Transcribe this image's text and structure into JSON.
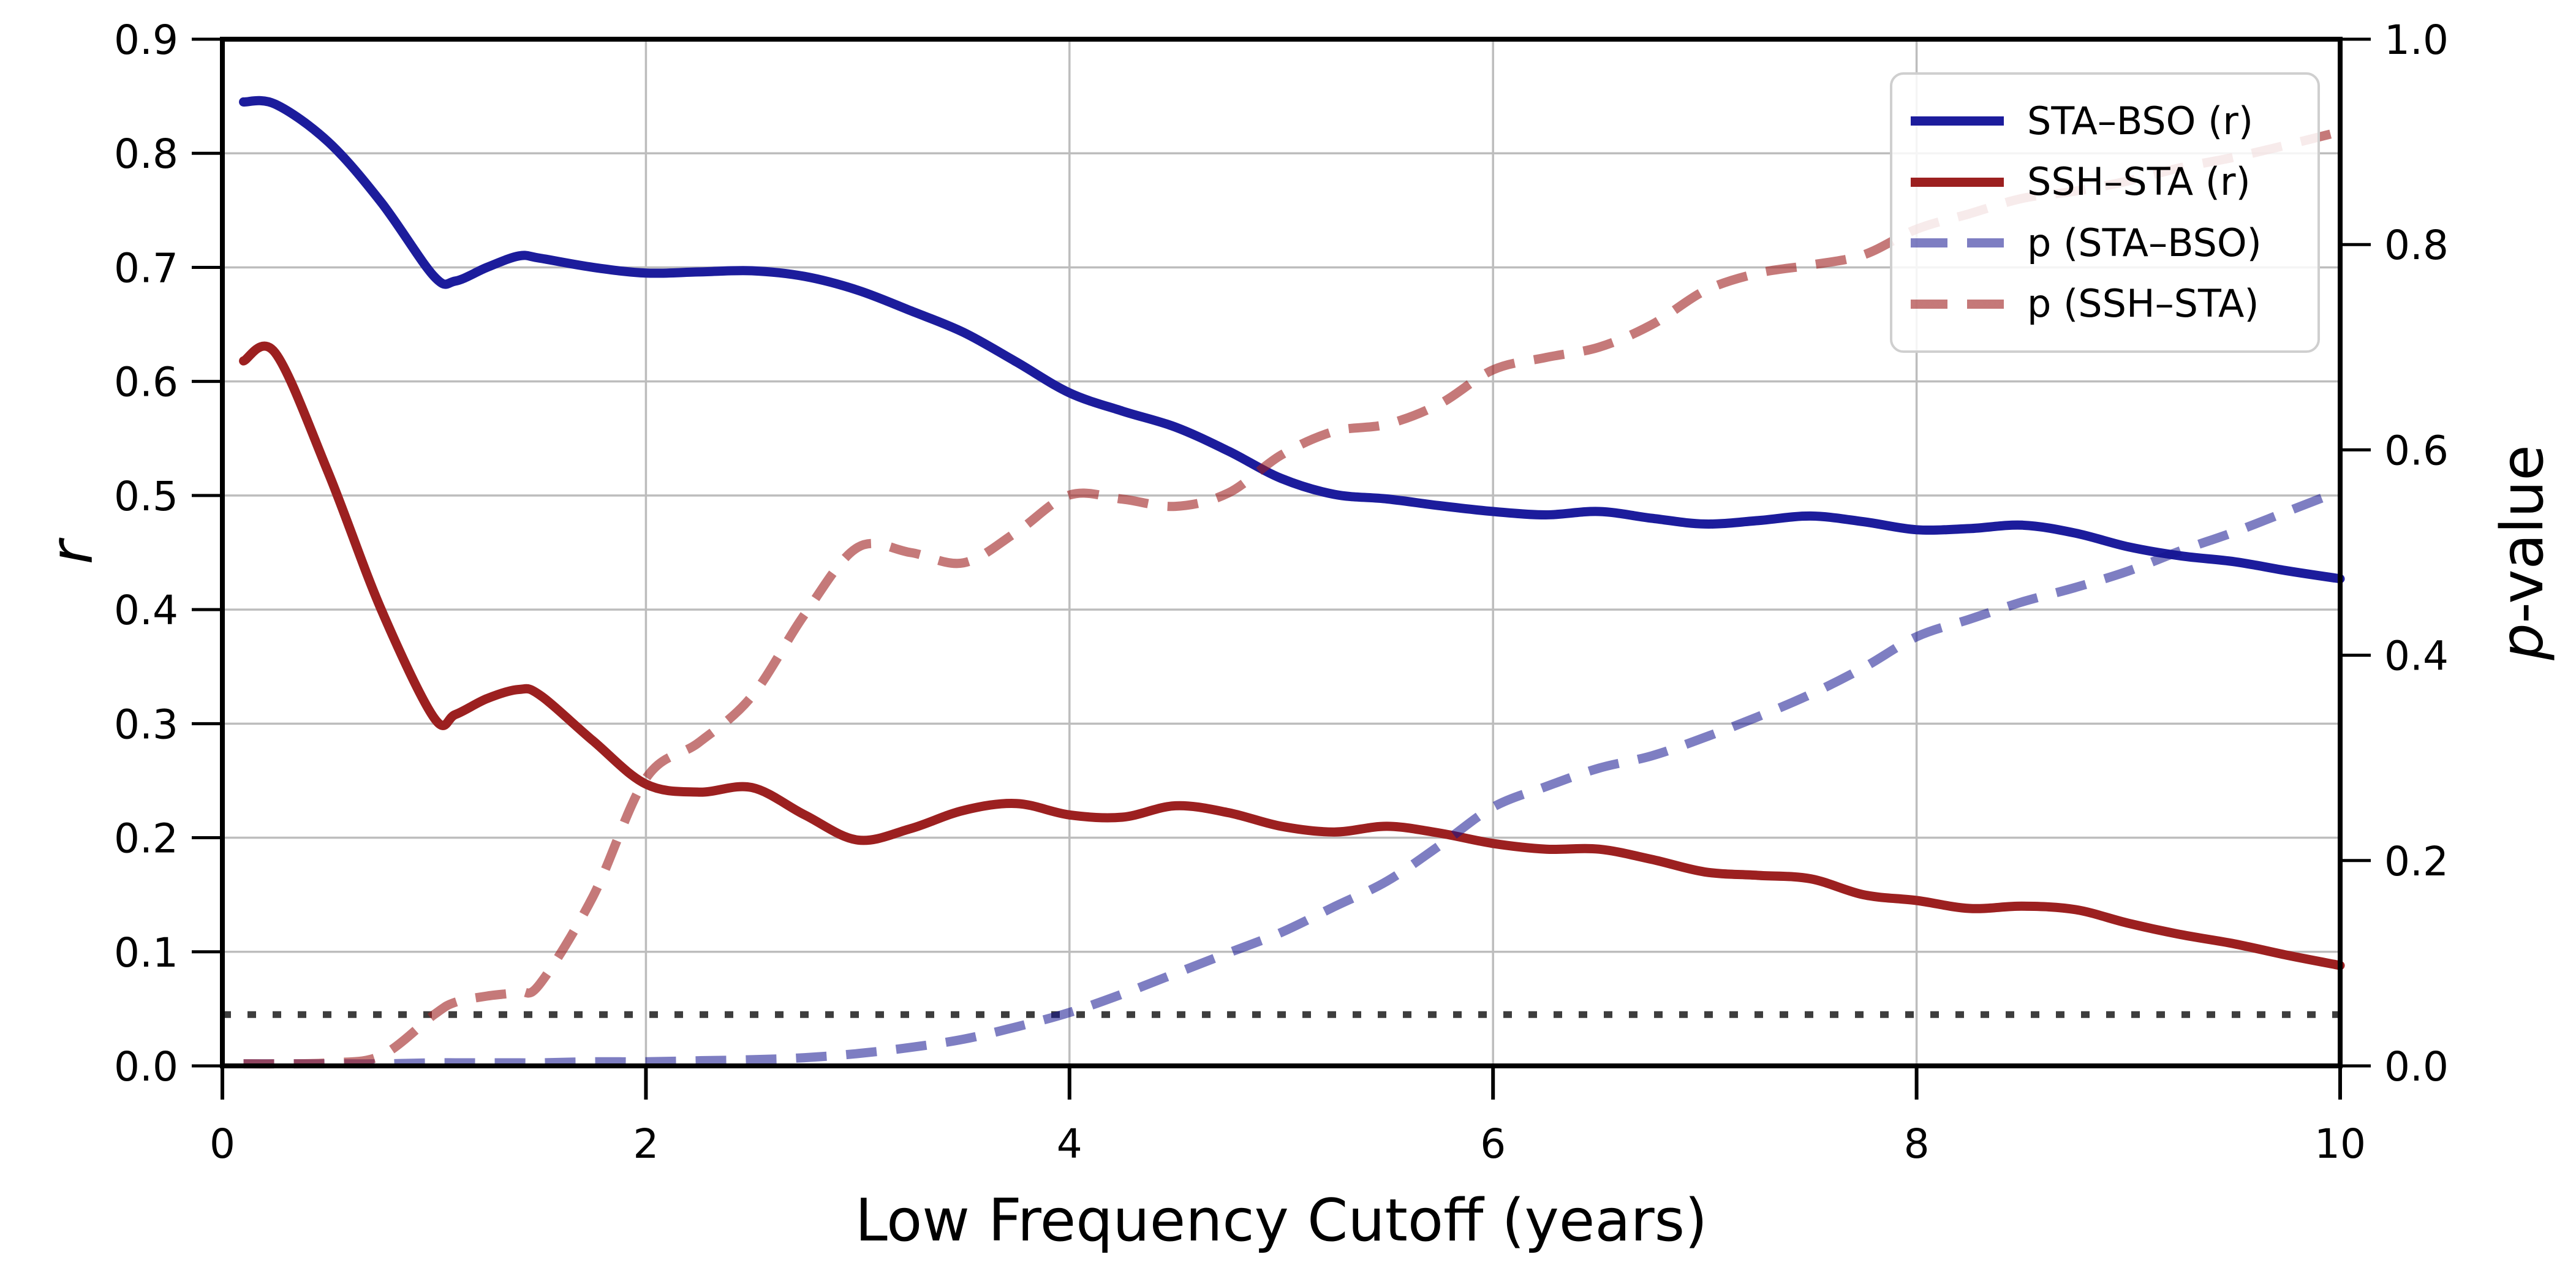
{
  "chart_data": {
    "type": "line",
    "title": "",
    "xlabel": "Low Frequency Cutoff (years)",
    "ylabel_left": "r",
    "ylabel_right": "p-value",
    "x_range": [
      0,
      10
    ],
    "y_left_range": [
      0.0,
      0.9
    ],
    "y_right_range": [
      0.0,
      1.0
    ],
    "x_ticks": [
      "0",
      "2",
      "4",
      "6",
      "8",
      "10"
    ],
    "y_left_ticks": [
      "0.0",
      "0.1",
      "0.2",
      "0.3",
      "0.4",
      "0.5",
      "0.6",
      "0.7",
      "0.8",
      "0.9"
    ],
    "y_right_ticks": [
      "0.0",
      "0.2",
      "0.4",
      "0.6",
      "0.8",
      "1.0"
    ],
    "grid": true,
    "grid_color": "#bdbdbd",
    "significance_line": {
      "value": 0.05,
      "axis": "right",
      "style": "dotted",
      "color": "#3d3d3d"
    },
    "x": [
      0.1,
      0.25,
      0.5,
      0.75,
      1.0,
      1.1,
      1.25,
      1.4,
      1.5,
      1.75,
      2.0,
      2.25,
      2.5,
      2.75,
      3.0,
      3.25,
      3.5,
      3.75,
      4.0,
      4.25,
      4.5,
      4.75,
      5.0,
      5.25,
      5.5,
      5.75,
      6.0,
      6.25,
      6.5,
      6.75,
      7.0,
      7.25,
      7.5,
      7.75,
      8.0,
      8.25,
      8.5,
      8.75,
      9.0,
      9.25,
      9.5,
      9.75,
      10.0
    ],
    "series": [
      {
        "name": "STA–BSO (r)",
        "axis": "left",
        "style": "solid",
        "color": "#1c1c9c",
        "opacity": 1,
        "values": [
          0.845,
          0.843,
          0.81,
          0.757,
          0.692,
          0.688,
          0.7,
          0.71,
          0.708,
          0.7,
          0.695,
          0.696,
          0.697,
          0.692,
          0.68,
          0.662,
          0.643,
          0.617,
          0.59,
          0.574,
          0.56,
          0.539,
          0.515,
          0.501,
          0.497,
          0.491,
          0.486,
          0.483,
          0.486,
          0.48,
          0.475,
          0.478,
          0.482,
          0.477,
          0.47,
          0.471,
          0.474,
          0.467,
          0.455,
          0.447,
          0.442,
          0.434,
          0.427
        ]
      },
      {
        "name": "SSH–STA (r)",
        "axis": "left",
        "style": "solid",
        "color": "#9c2020",
        "opacity": 1,
        "values": [
          0.618,
          0.625,
          0.52,
          0.4,
          0.305,
          0.308,
          0.322,
          0.33,
          0.325,
          0.285,
          0.247,
          0.24,
          0.244,
          0.22,
          0.198,
          0.208,
          0.224,
          0.23,
          0.22,
          0.218,
          0.228,
          0.222,
          0.21,
          0.205,
          0.21,
          0.204,
          0.195,
          0.19,
          0.19,
          0.181,
          0.17,
          0.167,
          0.164,
          0.15,
          0.145,
          0.138,
          0.14,
          0.137,
          0.125,
          0.115,
          0.107,
          0.097,
          0.088
        ]
      },
      {
        "name": "p (STA–BSO)",
        "axis": "right",
        "style": "dashed",
        "color": "#14148f",
        "opacity": 0.55,
        "values": [
          0.002,
          0.002,
          0.002,
          0.002,
          0.003,
          0.003,
          0.003,
          0.003,
          0.003,
          0.004,
          0.004,
          0.005,
          0.006,
          0.008,
          0.012,
          0.018,
          0.026,
          0.038,
          0.052,
          0.07,
          0.09,
          0.11,
          0.13,
          0.155,
          0.18,
          0.215,
          0.252,
          0.272,
          0.29,
          0.302,
          0.32,
          0.34,
          0.362,
          0.388,
          0.418,
          0.435,
          0.452,
          0.466,
          0.482,
          0.502,
          0.52,
          0.54,
          0.56
        ]
      },
      {
        "name": "p (SSH–STA)",
        "axis": "right",
        "style": "dashed",
        "color": "#9e1f1f",
        "opacity": 0.6,
        "values": [
          0.002,
          0.002,
          0.003,
          0.01,
          0.05,
          0.062,
          0.068,
          0.072,
          0.08,
          0.165,
          0.28,
          0.315,
          0.36,
          0.44,
          0.505,
          0.5,
          0.49,
          0.52,
          0.556,
          0.552,
          0.545,
          0.558,
          0.595,
          0.618,
          0.625,
          0.645,
          0.678,
          0.69,
          0.7,
          0.722,
          0.755,
          0.772,
          0.78,
          0.79,
          0.815,
          0.83,
          0.845,
          0.852,
          0.862,
          0.875,
          0.885,
          0.897,
          0.91
        ]
      }
    ],
    "legend": {
      "position": "upper right",
      "items": [
        {
          "label": "STA–BSO (r)",
          "series": 0
        },
        {
          "label": "SSH–STA (r)",
          "series": 1
        },
        {
          "label": "p (STA–BSO)",
          "series": 2
        },
        {
          "label": "p (SSH–STA)",
          "series": 3
        }
      ]
    }
  }
}
